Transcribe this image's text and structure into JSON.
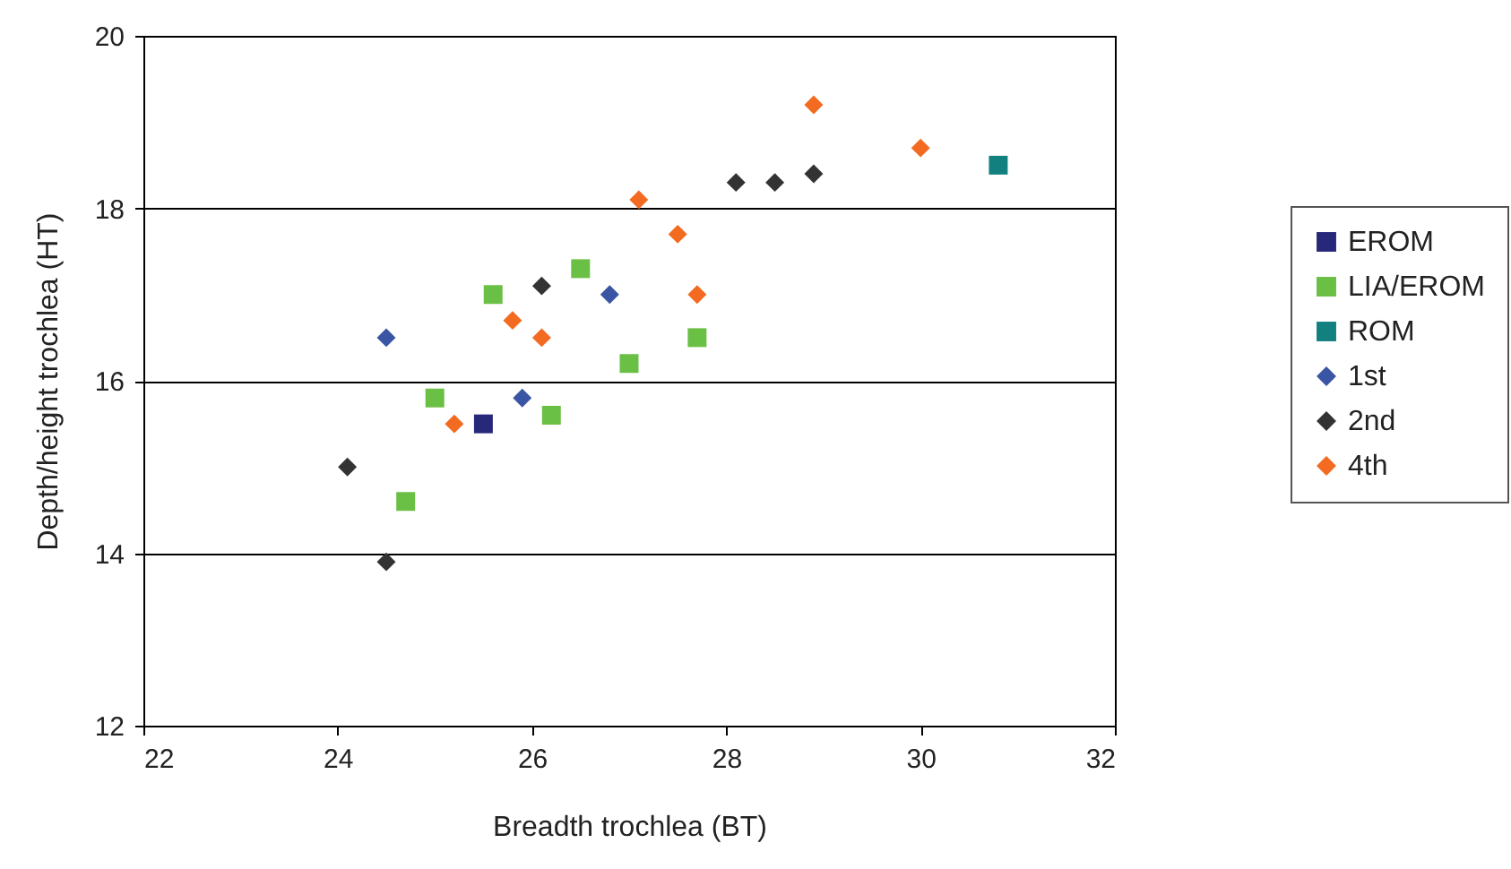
{
  "chart_data": {
    "type": "scatter",
    "xlabel": "Breadth trochlea (BT)",
    "ylabel": "Depth/height trochlea (HT)",
    "xlim": [
      22,
      32
    ],
    "xticks": [
      22,
      24,
      26,
      28,
      30,
      32
    ],
    "ylim": [
      12,
      20
    ],
    "yticks": [
      12,
      14,
      16,
      18,
      20
    ],
    "grid": "y",
    "legend": "right",
    "series": [
      {
        "name": "EROM",
        "color": "#27287a",
        "marker": "square",
        "x": [
          25.5
        ],
        "values": [
          15.5
        ]
      },
      {
        "name": "LIA/EROM",
        "color": "#6abf45",
        "marker": "square",
        "x": [
          24.7,
          25.0,
          25.6,
          26.2,
          26.5,
          27.0,
          27.7
        ],
        "values": [
          14.6,
          15.8,
          17.0,
          15.6,
          17.3,
          16.2,
          16.5
        ]
      },
      {
        "name": "ROM",
        "color": "#138080",
        "marker": "square",
        "x": [
          30.8
        ],
        "values": [
          18.5
        ]
      },
      {
        "name": "1st",
        "color": "#3b55a5",
        "marker": "diamond",
        "x": [
          24.5,
          25.9,
          26.8
        ],
        "values": [
          16.5,
          15.8,
          17.0
        ]
      },
      {
        "name": "2nd",
        "color": "#333333",
        "marker": "diamond",
        "x": [
          24.1,
          24.5,
          26.1,
          28.1,
          28.5,
          28.9
        ],
        "values": [
          15.0,
          13.9,
          17.1,
          18.3,
          18.3,
          18.4
        ]
      },
      {
        "name": "4th",
        "color": "#f26b21",
        "marker": "diamond",
        "x": [
          25.2,
          25.8,
          26.1,
          27.1,
          27.5,
          27.7,
          28.9,
          30.0
        ],
        "values": [
          15.5,
          16.7,
          16.5,
          18.1,
          17.7,
          17.0,
          19.2,
          18.7
        ]
      }
    ]
  }
}
